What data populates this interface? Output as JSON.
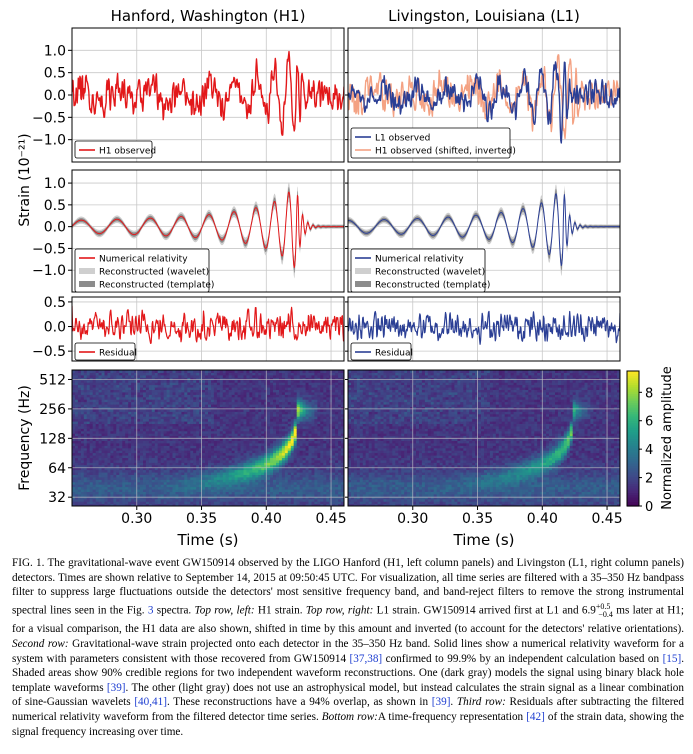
{
  "chart_data": {
    "type": "line",
    "panel_titles": {
      "left": "Hanford, Washington (H1)",
      "right": "Livingston, Louisiana (L1)"
    },
    "ylabel_strain": "Strain (10⁻²¹)",
    "ylabel_frequency": "Frequency (Hz)",
    "xlabel": "Time (s)",
    "colorbar_label": "Normalized amplitude",
    "xlim": [
      0.25,
      0.46
    ],
    "x_ticks": [
      "0.30",
      "0.35",
      "0.40",
      "0.45"
    ],
    "x_tick_values": [
      0.3,
      0.35,
      0.4,
      0.45
    ],
    "rows": [
      {
        "name": "top",
        "ylim": [
          -1.5,
          1.5
        ],
        "y_ticks": [
          1.0,
          0.5,
          0.0,
          -0.5,
          -1.0
        ],
        "y_tick_labels": [
          "1.0",
          "0.5",
          "0.0",
          "−0.5",
          "−1.0"
        ]
      },
      {
        "name": "second",
        "ylim": [
          -1.5,
          1.3
        ],
        "y_ticks": [
          1.0,
          0.5,
          0.0,
          -0.5,
          -1.0
        ],
        "y_tick_labels": [
          "1.0",
          "0.5",
          "0.0",
          "−0.5",
          "−1.0"
        ]
      },
      {
        "name": "third",
        "ylim": [
          -0.7,
          0.6
        ],
        "y_ticks": [
          0.5,
          0.0,
          -0.5
        ],
        "y_tick_labels": [
          "0.5",
          "0.0",
          "−0.5"
        ]
      },
      {
        "name": "bottom",
        "y_ticks": [
          512,
          256,
          128,
          64,
          32
        ],
        "y_tick_labels": [
          "512",
          "256",
          "128",
          "64",
          "32"
        ]
      }
    ],
    "colorbar": {
      "ticks": [
        "8",
        "6",
        "4",
        "2",
        "0"
      ],
      "range": [
        0,
        9.5
      ]
    },
    "legends": {
      "h1_top": [
        "H1 observed"
      ],
      "l1_top": [
        "L1 observed",
        "H1 observed (shifted, inverted)"
      ],
      "nr": [
        "Numerical relativity",
        "Reconstructed (wavelet)",
        "Reconstructed (template)"
      ],
      "residual": [
        "Residual"
      ]
    },
    "colors": {
      "h1": "#e2181a",
      "l1": "#2b3f95",
      "h1_shifted": "#f4a283",
      "wavelet_band": "#cfcfcf",
      "template_band": "#8c8c8c"
    },
    "chirp": {
      "t_merger": 0.423,
      "f_start_hz": 35,
      "f_peak_hz": 250,
      "peak_amplitude": 1.0
    }
  },
  "caption": {
    "label": "FIG. 1.",
    "parts": [
      {
        "t": "   The gravitational-wave event GW150914 observed by the LIGO Hanford (H1, left column panels) and Livingston (L1, right column panels) detectors. Times are shown relative to September 14, 2015 at 09:50:45 UTC. For visualization, all time series are filtered with a 35–350 Hz bandpass filter to suppress large fluctuations outside the detectors' most sensitive frequency band, and band-reject filters to remove the strong instrumental spectral lines seen in the Fig. "
      },
      {
        "t": "3",
        "s": "ref"
      },
      {
        "t": " spectra. "
      },
      {
        "t": "Top row, left:",
        "s": "i"
      },
      {
        "t": " H1 strain. "
      },
      {
        "t": "Top row, right:",
        "s": "i"
      },
      {
        "t": " L1 strain. GW150914 arrived first at L1 and 6.9"
      },
      {
        "t": "+0.5",
        "s": "sup"
      },
      {
        "t": "−0.4",
        "s": "sub"
      },
      {
        "t": " ms later at H1; for a visual comparison, the H1 data are also shown, shifted in time by this amount and inverted (to account for the detectors' relative orientations). "
      },
      {
        "t": "Second row:",
        "s": "i"
      },
      {
        "t": " Gravitational-wave strain projected onto each detector in the 35–350 Hz band. Solid lines show a numerical relativity waveform for a system with parameters consistent with those recovered from GW150914 "
      },
      {
        "t": "[37,38]",
        "s": "ref"
      },
      {
        "t": " confirmed to 99.9% by an independent calculation based on "
      },
      {
        "t": "[15]",
        "s": "ref"
      },
      {
        "t": ". Shaded areas show 90% credible regions for two independent waveform reconstructions. One (dark gray) models the signal using binary black hole template waveforms "
      },
      {
        "t": "[39]",
        "s": "ref"
      },
      {
        "t": ". The other (light gray) does not use an astrophysical model, but instead calculates the strain signal as a linear combination of sine-Gaussian wavelets "
      },
      {
        "t": "[40,41]",
        "s": "ref"
      },
      {
        "t": ". These reconstructions have a 94% overlap, as shown in "
      },
      {
        "t": "[39]",
        "s": "ref"
      },
      {
        "t": ". "
      },
      {
        "t": "Third row:",
        "s": "i"
      },
      {
        "t": " Residuals after subtracting the filtered numerical relativity waveform from the filtered detector time series. "
      },
      {
        "t": "Bottom row:",
        "s": "i"
      },
      {
        "t": "A time-frequency representation "
      },
      {
        "t": "[42]",
        "s": "ref"
      },
      {
        "t": " of the strain data, showing the signal frequency increasing over time."
      }
    ]
  }
}
